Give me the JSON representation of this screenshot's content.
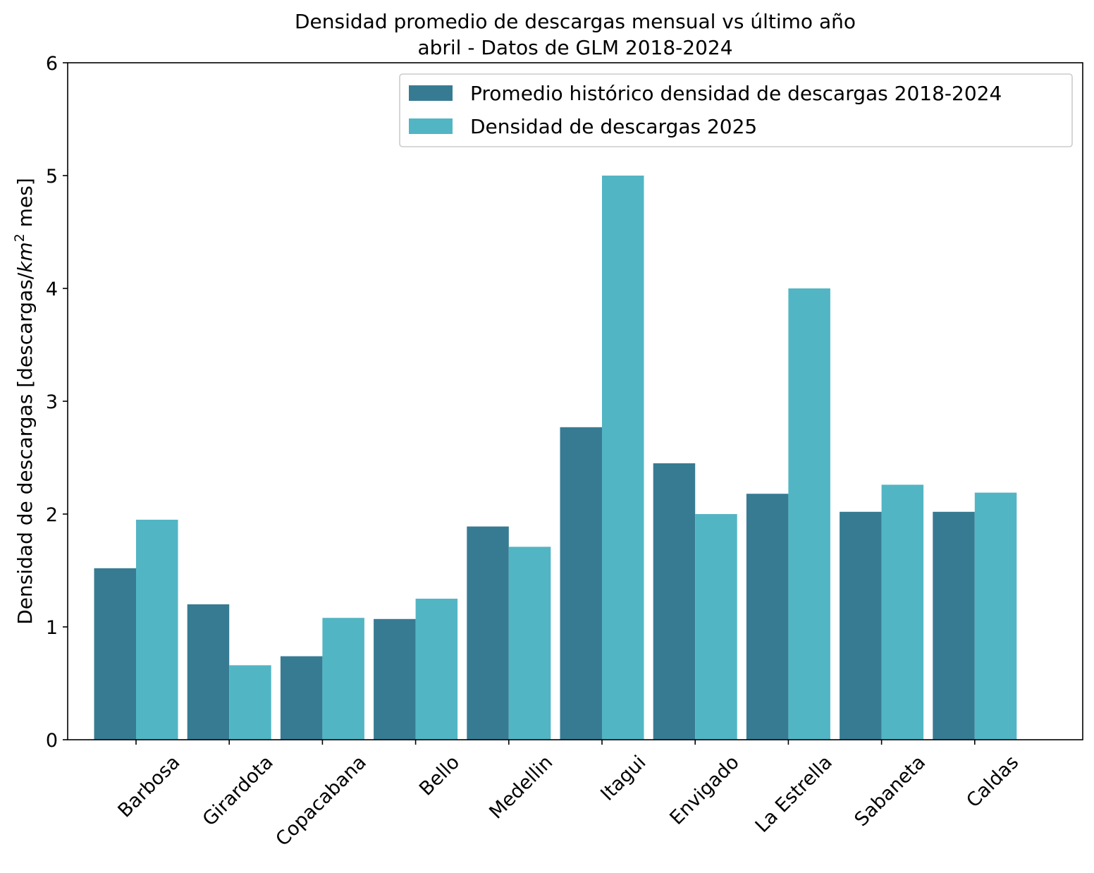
{
  "chart_data": {
    "type": "bar",
    "title": "Densidad promedio de descargas mensual vs último año",
    "subtitle": "abril - Datos de GLM 2018-2024",
    "ylabel_prefix": "Densidad de descargas [descargas/",
    "ylabel_unit": "km",
    "ylabel_exponent": "2",
    "ylabel_suffix": " mes]",
    "xlabel": "",
    "ylim": [
      0,
      6
    ],
    "yticks": [
      "0",
      "1",
      "2",
      "3",
      "4",
      "5",
      "6"
    ],
    "grid": false,
    "legend_position": "top-right",
    "categories": [
      "Barbosa",
      "Girardota",
      "Copacabana",
      "Bello",
      "Medellin",
      "Itagui",
      "Envigado",
      "La Estrella",
      "Sabaneta",
      "Caldas"
    ],
    "series": [
      {
        "name": "Promedio histórico densidad de descargas 2018-2024",
        "color": "#377b93",
        "values": [
          1.52,
          1.2,
          0.74,
          1.07,
          1.89,
          2.77,
          2.45,
          2.18,
          2.02,
          2.02
        ]
      },
      {
        "name": "Densidad de descargas 2025",
        "color": "#52b5c4",
        "values": [
          1.95,
          0.66,
          1.08,
          1.25,
          1.71,
          5.0,
          2.0,
          4.0,
          2.26,
          2.19
        ]
      }
    ]
  }
}
